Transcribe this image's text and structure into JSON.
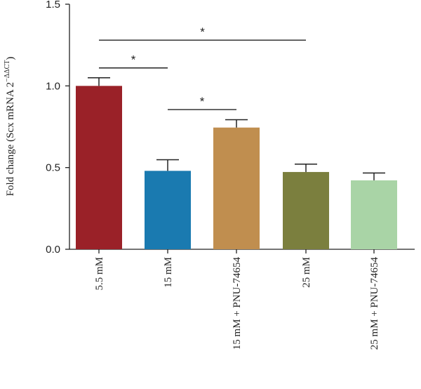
{
  "chart_data": {
    "type": "bar",
    "categories": [
      "5.5 mM",
      "15 mM",
      "15 mM + PNU-74654",
      "25 mM",
      "25 mM + PNU-74654"
    ],
    "values": [
      1.0,
      0.48,
      0.745,
      0.473,
      0.422
    ],
    "errors": [
      0.05,
      0.068,
      0.048,
      0.048,
      0.045
    ],
    "colors": [
      "#9a2128",
      "#1a7ab0",
      "#c08e4f",
      "#7b7f3e",
      "#a9d4a6"
    ],
    "ylabel": {
      "main": "Fold change (Scx mRNA 2",
      "superscript": "−ΔΔCT",
      "close": ")"
    },
    "ylim": [
      0,
      1.5
    ],
    "yticks": [
      "0.0",
      "0.5",
      "1.0",
      "1.5"
    ],
    "ytick_values": [
      0,
      0.5,
      1.0,
      1.5
    ],
    "significance": [
      {
        "from": 0,
        "to": 3,
        "y": 1.28,
        "label": "*"
      },
      {
        "from": 0,
        "to": 1,
        "y": 1.11,
        "label": "*"
      },
      {
        "from": 1,
        "to": 2,
        "y": 0.855,
        "label": "*"
      }
    ]
  }
}
